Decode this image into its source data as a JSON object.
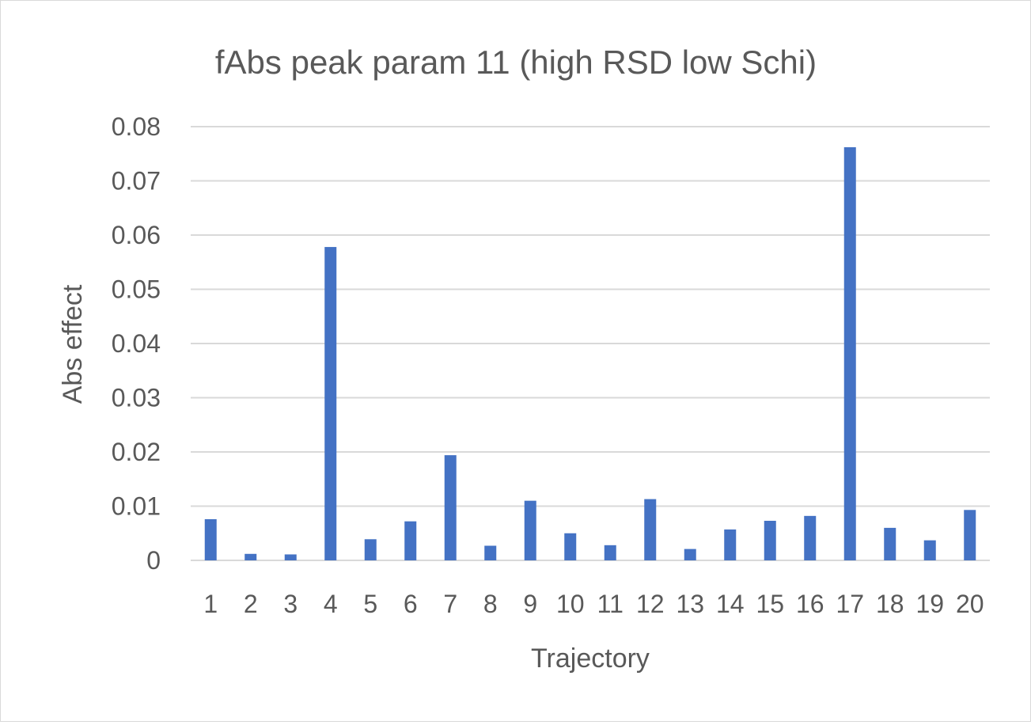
{
  "chart_data": {
    "type": "bar",
    "title": "fAbs peak param 11 (high RSD low Schi)",
    "xlabel": "Trajectory",
    "ylabel": "Abs effect",
    "categories": [
      "1",
      "2",
      "3",
      "4",
      "5",
      "6",
      "7",
      "8",
      "9",
      "10",
      "11",
      "12",
      "13",
      "14",
      "15",
      "16",
      "17",
      "18",
      "19",
      "20"
    ],
    "values": [
      0.0076,
      0.0012,
      0.0011,
      0.0578,
      0.0039,
      0.0072,
      0.0194,
      0.0027,
      0.011,
      0.005,
      0.0028,
      0.0113,
      0.0021,
      0.0057,
      0.0073,
      0.0082,
      0.0762,
      0.006,
      0.0037,
      0.0093
    ],
    "ylim": [
      0,
      0.08
    ],
    "yticks": [
      "0",
      "0.01",
      "0.02",
      "0.03",
      "0.04",
      "0.05",
      "0.06",
      "0.07",
      "0.08"
    ],
    "grid": true,
    "legend": "none",
    "bar_color": "#4472c4"
  }
}
